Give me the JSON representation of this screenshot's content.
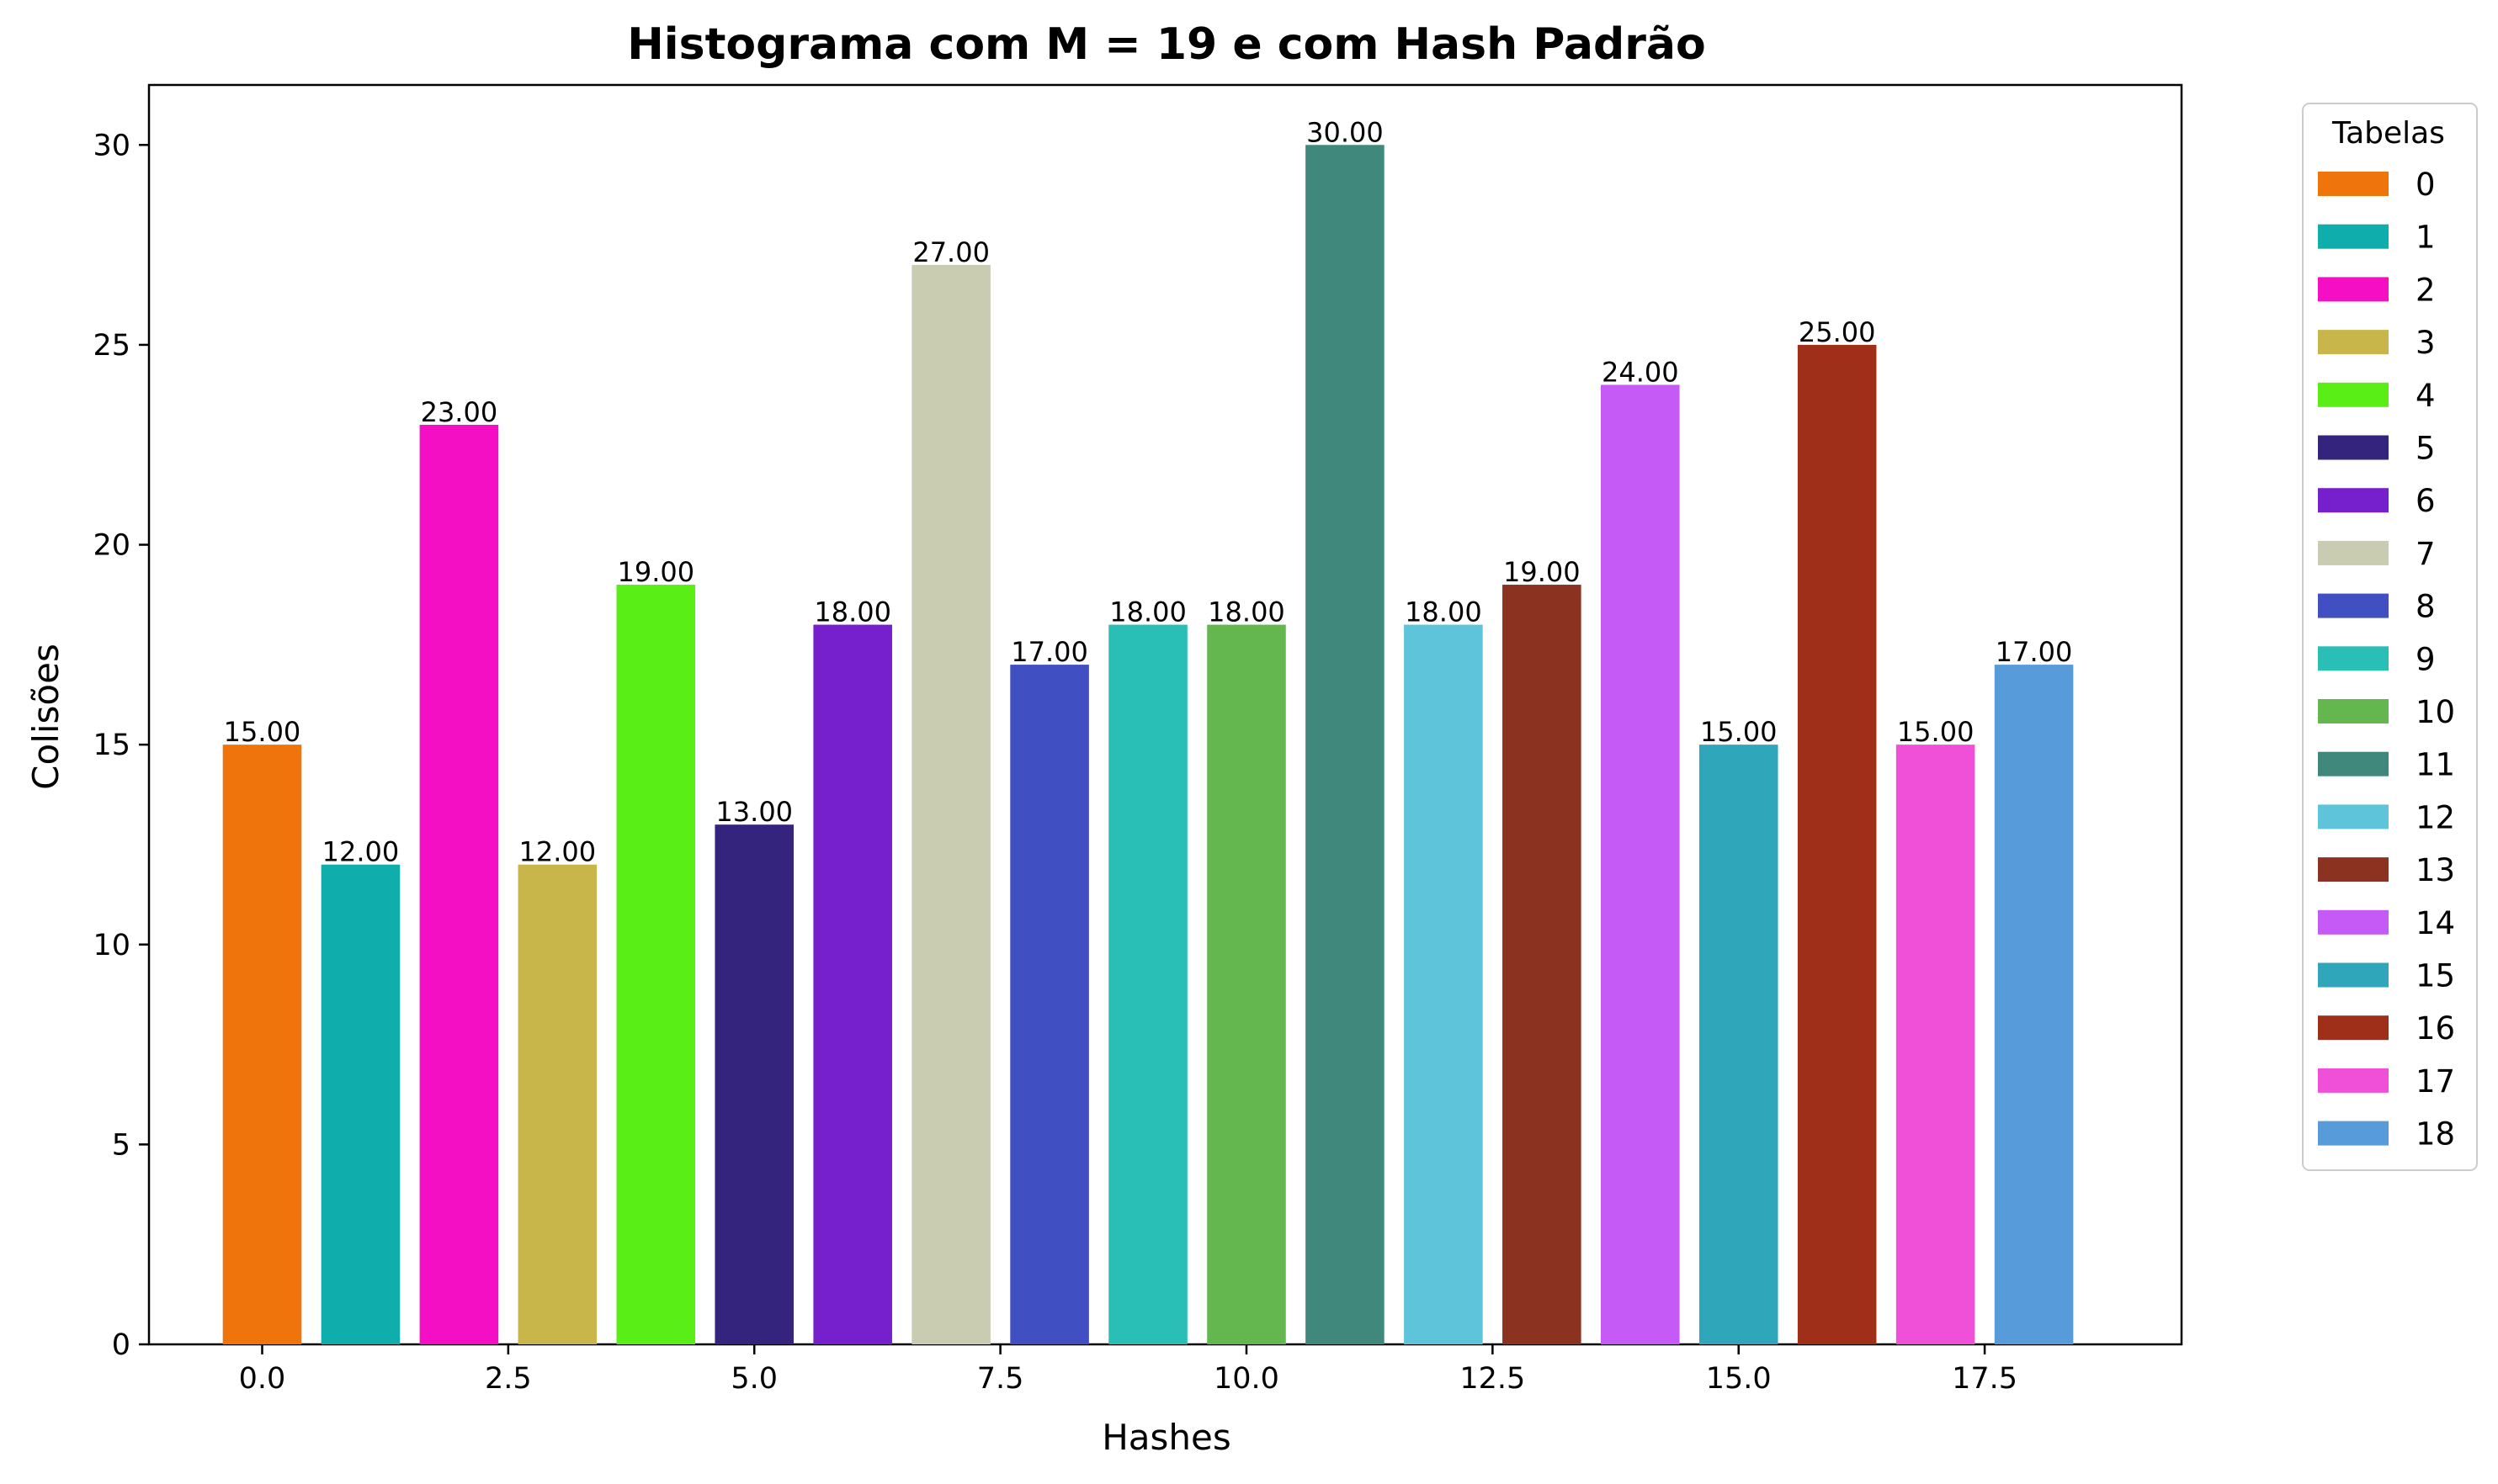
{
  "chart_data": {
    "type": "bar",
    "title": "Histograma com M = 19 e com Hash Padrão",
    "xlabel": "Hashes",
    "ylabel": "Colisões",
    "xlim": [
      -1.15,
      19.5
    ],
    "ylim": [
      0,
      31.5
    ],
    "xticks": [
      0.0,
      2.5,
      5.0,
      7.5,
      10.0,
      12.5,
      15.0,
      17.5
    ],
    "xtick_labels": [
      "0.0",
      "2.5",
      "5.0",
      "7.5",
      "10.0",
      "12.5",
      "15.0",
      "17.5"
    ],
    "yticks": [
      0,
      5,
      10,
      15,
      20,
      25,
      30
    ],
    "ytick_labels": [
      "0",
      "5",
      "10",
      "15",
      "20",
      "25",
      "30"
    ],
    "grid": false,
    "legend": {
      "title": "Tabelas",
      "placement": "outside-upper-right"
    },
    "bar_width": 0.8,
    "series": [
      {
        "name": "0",
        "x": 0,
        "value": 15,
        "label": "15.00",
        "color": "#F0740C"
      },
      {
        "name": "1",
        "x": 1,
        "value": 12,
        "label": "12.00",
        "color": "#10ADAD"
      },
      {
        "name": "2",
        "x": 2,
        "value": 23,
        "label": "23.00",
        "color": "#F50FC4"
      },
      {
        "name": "3",
        "x": 3,
        "value": 12,
        "label": "12.00",
        "color": "#C8B64A"
      },
      {
        "name": "4",
        "x": 4,
        "value": 19,
        "label": "19.00",
        "color": "#58EE16"
      },
      {
        "name": "5",
        "x": 5,
        "value": 13,
        "label": "13.00",
        "color": "#35247E"
      },
      {
        "name": "6",
        "x": 6,
        "value": 18,
        "label": "18.00",
        "color": "#761FCD"
      },
      {
        "name": "7",
        "x": 7,
        "value": 27,
        "label": "27.00",
        "color": "#C9CCB1"
      },
      {
        "name": "8",
        "x": 8,
        "value": 17,
        "label": "17.00",
        "color": "#404FC1"
      },
      {
        "name": "9",
        "x": 9,
        "value": 18,
        "label": "18.00",
        "color": "#29BFB7"
      },
      {
        "name": "10",
        "x": 10,
        "value": 18,
        "label": "18.00",
        "color": "#64B74F"
      },
      {
        "name": "11",
        "x": 11,
        "value": 30,
        "label": "30.00",
        "color": "#40887C"
      },
      {
        "name": "12",
        "x": 12,
        "value": 18,
        "label": "18.00",
        "color": "#5EC4D9"
      },
      {
        "name": "13",
        "x": 13,
        "value": 19,
        "label": "19.00",
        "color": "#8B3320"
      },
      {
        "name": "14",
        "x": 14,
        "value": 24,
        "label": "24.00",
        "color": "#C55AF7"
      },
      {
        "name": "15",
        "x": 15,
        "value": 15,
        "label": "15.00",
        "color": "#2FA6B9"
      },
      {
        "name": "16",
        "x": 16,
        "value": 25,
        "label": "25.00",
        "color": "#A02F19"
      },
      {
        "name": "17",
        "x": 17,
        "value": 15,
        "label": "15.00",
        "color": "#F04FD8"
      },
      {
        "name": "18",
        "x": 18,
        "value": 17,
        "label": "17.00",
        "color": "#589BDB"
      }
    ]
  }
}
